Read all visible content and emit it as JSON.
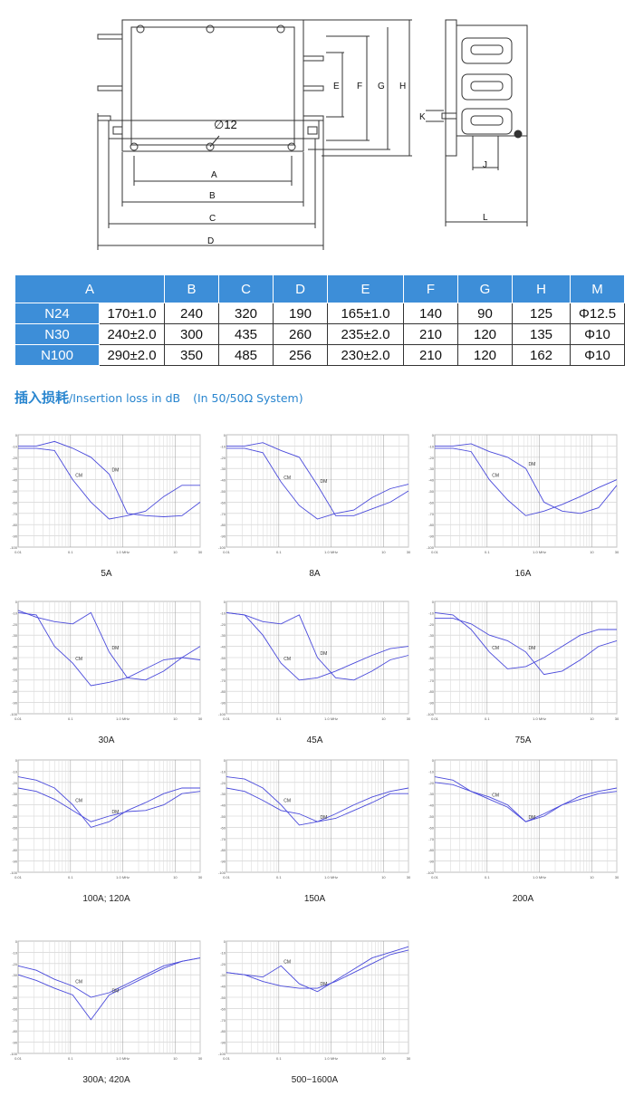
{
  "drawing": {
    "labels": {
      "A": "A",
      "B": "B",
      "C": "C",
      "D": "D",
      "E": "E",
      "F": "F",
      "G": "G",
      "H": "H",
      "K": "K",
      "J": "J",
      "L": "L"
    },
    "hole_label": "∅12"
  },
  "dim_table": {
    "headers": [
      "A",
      "B",
      "C",
      "D",
      "E",
      "F",
      "G",
      "H",
      "M"
    ],
    "rows": [
      {
        "model": "N24",
        "values": [
          "170±1.0",
          "240",
          "320",
          "190",
          "165±1.0",
          "140",
          "90",
          "125",
          "Φ12.5"
        ]
      },
      {
        "model": "N30",
        "values": [
          "240±2.0",
          "300",
          "435",
          "260",
          "235±2.0",
          "210",
          "120",
          "135",
          "Φ10"
        ]
      },
      {
        "model": "N100",
        "values": [
          "290±2.0",
          "350",
          "485",
          "256",
          "230±2.0",
          "210",
          "120",
          "162",
          "Φ10"
        ]
      }
    ]
  },
  "section": {
    "title_cn": "插入损耗",
    "title_en": "/Insertion loss in dB",
    "system": "(In 50/50Ω System)"
  },
  "chart_axes": {
    "y_ticks": [
      "0",
      "-10",
      "-20",
      "-30",
      "-40",
      "-50",
      "-60",
      "-70",
      "-80",
      "-90",
      "-100"
    ],
    "x_ticks": [
      "0.01",
      "0.1",
      "1.0 MHz",
      "10",
      "30"
    ]
  },
  "chart_data": [
    {
      "type": "line",
      "caption": "5A",
      "series": [
        {
          "name": "CM",
          "values": [
            -12,
            -12,
            -14,
            -40,
            -60,
            -75,
            -72,
            -68,
            -55,
            -45,
            -45
          ]
        },
        {
          "name": "DM",
          "values": [
            -10,
            -10,
            -6,
            -12,
            -20,
            -35,
            -70,
            -72,
            -73,
            -72,
            -60
          ]
        }
      ]
    },
    {
      "type": "line",
      "caption": "8A",
      "series": [
        {
          "name": "CM",
          "values": [
            -12,
            -12,
            -16,
            -42,
            -63,
            -75,
            -70,
            -67,
            -56,
            -48,
            -44
          ]
        },
        {
          "name": "DM",
          "values": [
            -10,
            -10,
            -7,
            -14,
            -20,
            -45,
            -72,
            -72,
            -66,
            -60,
            -50
          ]
        }
      ]
    },
    {
      "type": "line",
      "caption": "16A",
      "series": [
        {
          "name": "CM",
          "values": [
            -12,
            -12,
            -15,
            -40,
            -58,
            -72,
            -68,
            -62,
            -55,
            -47,
            -40
          ]
        },
        {
          "name": "DM",
          "values": [
            -10,
            -10,
            -8,
            -15,
            -20,
            -30,
            -60,
            -68,
            -70,
            -65,
            -45
          ]
        }
      ]
    },
    {
      "type": "line",
      "caption": "30A",
      "series": [
        {
          "name": "CM",
          "values": [
            -10,
            -12,
            -40,
            -55,
            -75,
            -72,
            -68,
            -60,
            -52,
            -50,
            -52
          ]
        },
        {
          "name": "DM",
          "values": [
            -8,
            -14,
            -18,
            -20,
            -10,
            -45,
            -68,
            -70,
            -62,
            -50,
            -40
          ]
        }
      ]
    },
    {
      "type": "line",
      "caption": "45A",
      "series": [
        {
          "name": "CM",
          "values": [
            -10,
            -12,
            -30,
            -55,
            -70,
            -68,
            -62,
            -55,
            -48,
            -42,
            -40
          ]
        },
        {
          "name": "DM",
          "values": [
            -10,
            -12,
            -18,
            -20,
            -12,
            -50,
            -68,
            -70,
            -62,
            -52,
            -48
          ]
        }
      ]
    },
    {
      "type": "line",
      "caption": "75A",
      "series": [
        {
          "name": "CM",
          "values": [
            -10,
            -12,
            -25,
            -45,
            -60,
            -58,
            -50,
            -40,
            -30,
            -25,
            -25
          ]
        },
        {
          "name": "DM",
          "values": [
            -15,
            -15,
            -20,
            -30,
            -35,
            -45,
            -65,
            -62,
            -52,
            -40,
            -35
          ]
        }
      ]
    },
    {
      "type": "line",
      "caption": "100A; 120A",
      "series": [
        {
          "name": "CM",
          "values": [
            -15,
            -18,
            -25,
            -40,
            -60,
            -55,
            -45,
            -38,
            -30,
            -25,
            -25
          ]
        },
        {
          "name": "DM",
          "values": [
            -25,
            -28,
            -35,
            -45,
            -55,
            -50,
            -46,
            -45,
            -40,
            -30,
            -28
          ]
        }
      ]
    },
    {
      "type": "line",
      "caption": "150A",
      "series": [
        {
          "name": "CM",
          "values": [
            -15,
            -17,
            -25,
            -40,
            -58,
            -55,
            -48,
            -40,
            -33,
            -28,
            -25
          ]
        },
        {
          "name": "DM",
          "values": [
            -25,
            -28,
            -36,
            -45,
            -48,
            -55,
            -52,
            -45,
            -38,
            -30,
            -30
          ]
        }
      ]
    },
    {
      "type": "line",
      "caption": "200A",
      "series": [
        {
          "name": "CM",
          "values": [
            -15,
            -18,
            -28,
            -35,
            -42,
            -55,
            -50,
            -40,
            -32,
            -28,
            -25
          ]
        },
        {
          "name": "DM",
          "values": [
            -20,
            -22,
            -28,
            -33,
            -40,
            -55,
            -48,
            -40,
            -35,
            -30,
            -28
          ]
        }
      ]
    },
    {
      "type": "line",
      "caption": "300A; 420A",
      "series": [
        {
          "name": "CM",
          "values": [
            -22,
            -26,
            -34,
            -40,
            -50,
            -46,
            -38,
            -30,
            -22,
            -18,
            -15
          ]
        },
        {
          "name": "DM",
          "values": [
            -30,
            -35,
            -42,
            -48,
            -70,
            -48,
            -40,
            -32,
            -24,
            -18,
            -15
          ]
        }
      ]
    },
    {
      "type": "line",
      "caption": "500~1600A",
      "series": [
        {
          "name": "CM",
          "values": [
            -28,
            -30,
            -32,
            -22,
            -38,
            -45,
            -35,
            -25,
            -15,
            -10,
            -5
          ]
        },
        {
          "name": "DM",
          "values": [
            -28,
            -30,
            -36,
            -40,
            -42,
            -42,
            -36,
            -28,
            -20,
            -12,
            -8
          ]
        }
      ]
    }
  ]
}
